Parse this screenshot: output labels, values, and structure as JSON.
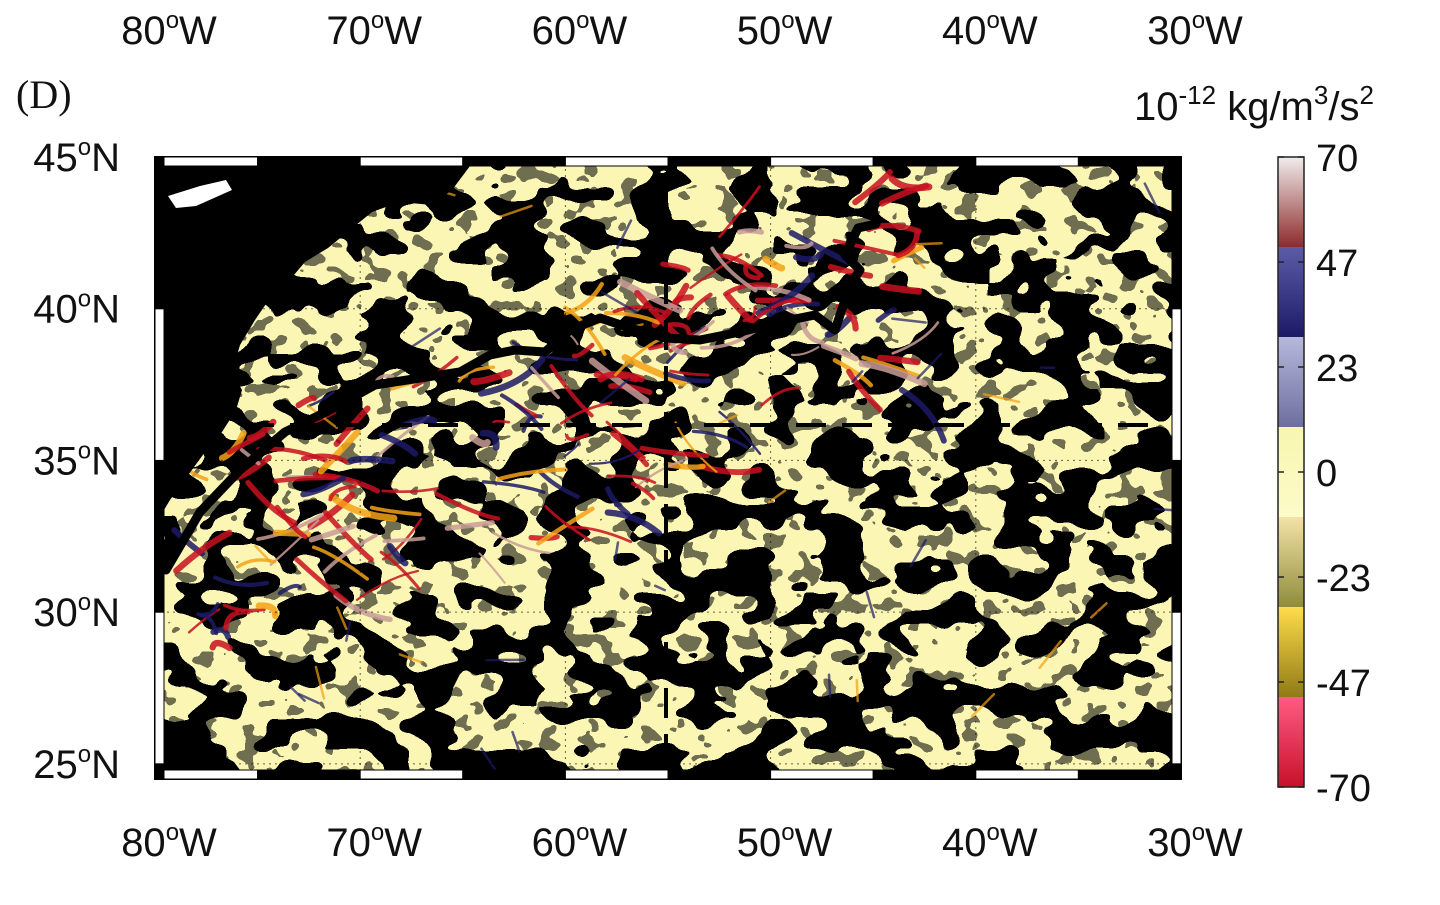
{
  "panel_label": "(D)",
  "colorbar": {
    "unit": {
      "base": "10",
      "exp1": "-12",
      "mid": " kg/m",
      "exp2": "3",
      "tail": "/s",
      "exp3": "2"
    },
    "ticks": [
      "70",
      "47",
      "23",
      "0",
      "-23",
      "-47",
      "-70"
    ],
    "segments": [
      {
        "top": "#f1ecec",
        "bottom": "#8c2a2a"
      },
      {
        "top": "#5b5ca8",
        "bottom": "#1c1a66"
      },
      {
        "top": "#b7b8dc",
        "bottom": "#6d6e9e"
      },
      {
        "top": "#f8f6b0",
        "bottom": "#fdfbc8"
      },
      {
        "top": "#f4e2a8",
        "bottom": "#8e8c3b"
      },
      {
        "top": "#ffdc4a",
        "bottom": "#8f7a15"
      },
      {
        "top": "#ff5b84",
        "bottom": "#c8102a"
      }
    ]
  },
  "map": {
    "lon_labels": [
      "80",
      "70",
      "60",
      "50",
      "40",
      "30"
    ],
    "lon_suffix": "W",
    "lat_labels": [
      "45",
      "40",
      "35",
      "30",
      "25"
    ],
    "lat_suffix": "N",
    "degree_mark": "o",
    "lon_range": [
      -80,
      -30
    ],
    "lat_range": [
      24.5,
      45
    ],
    "section_line_lat": 36,
    "section_line_lon": -55,
    "colors": {
      "land": "#000000",
      "positive": "#8f90c4",
      "negative": "#fbf6b3",
      "strong_negative": "#c81020",
      "orange": "#f4a116",
      "dark_blue": "#1c1a66",
      "pink": "#c79b96",
      "gulf_stream_path": "#000000"
    }
  }
}
